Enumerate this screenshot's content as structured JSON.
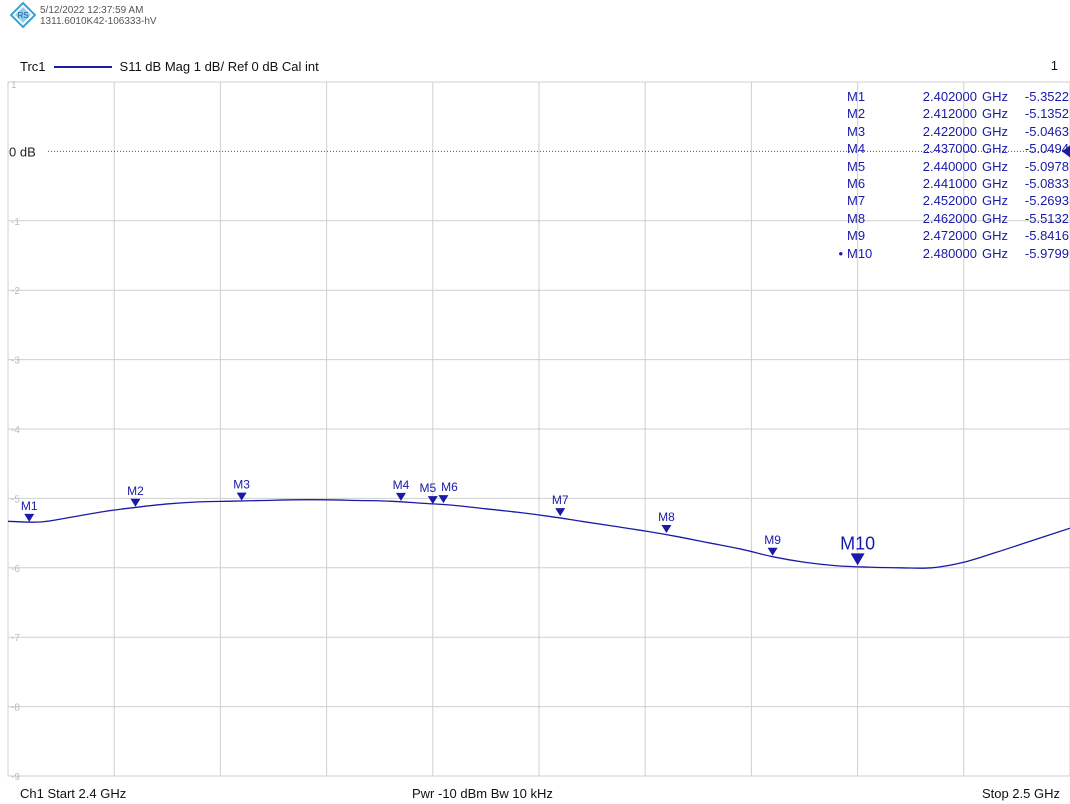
{
  "header": {
    "timestamp": "5/12/2022 12:37:59 AM",
    "device_id": "1311.6010K42-106333-hV",
    "trace_name": "Trc1",
    "trace_desc": "S11  dB Mag  1 dB/ Ref 0 dB  Cal int",
    "window_number": "1"
  },
  "footer": {
    "start": "Ch1  Start  2.4 GHz",
    "center": "Pwr  -10 dBm  Bw  10 kHz",
    "stop": "Stop  2.5 GHz"
  },
  "colors": {
    "trace": "#1a1aa8",
    "grid": "#cfcfcf",
    "axis_label": "#bbbbbb"
  },
  "chart_data": {
    "type": "line",
    "xlim": [
      2.4,
      2.5
    ],
    "ylim": [
      -9,
      1
    ],
    "ref_label": "0 dB",
    "y_tick_labels": [
      "1",
      "-1",
      "-2",
      "-3",
      "-4",
      "-5",
      "-6",
      "-7",
      "-8",
      "-9"
    ],
    "y_tick_values": [
      1,
      -1,
      -2,
      -3,
      -4,
      -5,
      -6,
      -7,
      -8,
      -9
    ],
    "series": [
      {
        "x": [
          2.4,
          2.403,
          2.406,
          2.409,
          2.412,
          2.415,
          2.418,
          2.421,
          2.424,
          2.427,
          2.43,
          2.433,
          2.436,
          2.439,
          2.442,
          2.445,
          2.448,
          2.451,
          2.454,
          2.457,
          2.46,
          2.463,
          2.466,
          2.469,
          2.472,
          2.475,
          2.478,
          2.481,
          2.484,
          2.487,
          2.49,
          2.493,
          2.496,
          2.5
        ],
        "y": [
          -5.33,
          -5.34,
          -5.27,
          -5.19,
          -5.13,
          -5.08,
          -5.05,
          -5.04,
          -5.03,
          -5.02,
          -5.02,
          -5.03,
          -5.04,
          -5.07,
          -5.1,
          -5.15,
          -5.2,
          -5.26,
          -5.33,
          -5.4,
          -5.47,
          -5.55,
          -5.64,
          -5.73,
          -5.84,
          -5.92,
          -5.97,
          -5.99,
          -6.0,
          -6.0,
          -5.92,
          -5.78,
          -5.63,
          -5.43
        ]
      }
    ],
    "markers": [
      {
        "name": "M1",
        "freq": "2.402000",
        "unit": "GHz",
        "value": "-5.3522",
        "db": "dB",
        "x": 2.402,
        "y": -5.3522,
        "active": false
      },
      {
        "name": "M2",
        "freq": "2.412000",
        "unit": "GHz",
        "value": "-5.1352",
        "db": "dB",
        "x": 2.412,
        "y": -5.1352,
        "active": false
      },
      {
        "name": "M3",
        "freq": "2.422000",
        "unit": "GHz",
        "value": "-5.0463",
        "db": "dB",
        "x": 2.422,
        "y": -5.0463,
        "active": false
      },
      {
        "name": "M4",
        "freq": "2.437000",
        "unit": "GHz",
        "value": "-5.0494",
        "db": "dB",
        "x": 2.437,
        "y": -5.0494,
        "active": false
      },
      {
        "name": "M5",
        "freq": "2.440000",
        "unit": "GHz",
        "value": "-5.0978",
        "db": "dB",
        "x": 2.44,
        "y": -5.0978,
        "active": false
      },
      {
        "name": "M6",
        "freq": "2.441000",
        "unit": "GHz",
        "value": "-5.0833",
        "db": "dB",
        "x": 2.441,
        "y": -5.0833,
        "active": false
      },
      {
        "name": "M7",
        "freq": "2.452000",
        "unit": "GHz",
        "value": "-5.2693",
        "db": "dB",
        "x": 2.452,
        "y": -5.2693,
        "active": false
      },
      {
        "name": "M8",
        "freq": "2.462000",
        "unit": "GHz",
        "value": "-5.5132",
        "db": "dB",
        "x": 2.462,
        "y": -5.5132,
        "active": false
      },
      {
        "name": "M9",
        "freq": "2.472000",
        "unit": "GHz",
        "value": "-5.8416",
        "db": "dB",
        "x": 2.472,
        "y": -5.8416,
        "active": false
      },
      {
        "name": "M10",
        "freq": "2.480000",
        "unit": "GHz",
        "value": "-5.9799",
        "db": "dB",
        "x": 2.48,
        "y": -5.9799,
        "active": true
      }
    ]
  }
}
